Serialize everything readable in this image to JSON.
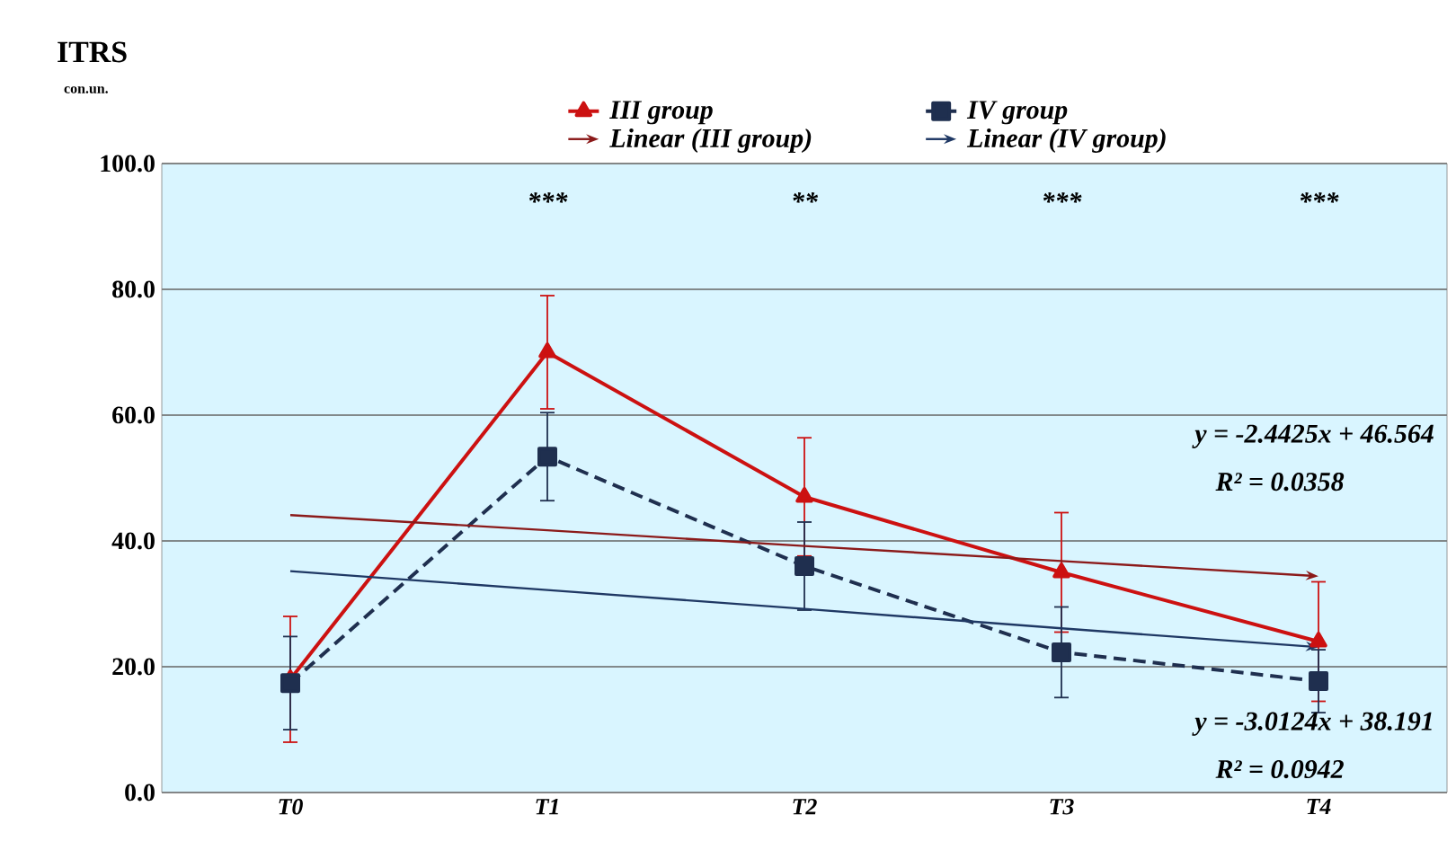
{
  "chart_data": {
    "type": "line",
    "title": "ITRS",
    "subtitle": "con.un.",
    "categories": [
      "T0",
      "T1",
      "T2",
      "T3",
      "T4"
    ],
    "ylim": [
      0,
      100
    ],
    "yticks": [
      {
        "value": 0,
        "label": "0.0"
      },
      {
        "value": 20,
        "label": "20.0"
      },
      {
        "value": 40,
        "label": "40.0"
      },
      {
        "value": 60,
        "label": "60.0"
      },
      {
        "value": 80,
        "label": "80.0"
      },
      {
        "value": 100,
        "label": "100.0"
      }
    ],
    "grid": "y",
    "legend": "top",
    "series": [
      {
        "name": "III group",
        "color": "#cc1111",
        "values": [
          18,
          70,
          47,
          35,
          24
        ],
        "errors": [
          10,
          9,
          9.4,
          9.5,
          9.5
        ],
        "marker": "triangle",
        "line_style": "solid"
      },
      {
        "name": "IV group",
        "color": "#1f2f4f",
        "values": [
          17.4,
          53.4,
          36,
          22.3,
          17.7
        ],
        "errors": [
          7.4,
          7,
          7,
          7.2,
          5
        ],
        "marker": "square",
        "line_style": "dashed"
      },
      {
        "name": "Linear (III group)",
        "color": "#8b1a1a",
        "values": [
          44.1,
          41.7,
          39.2,
          36.8,
          34.4
        ],
        "marker": "none",
        "line_style": "solid"
      },
      {
        "name": "Linear (IV group)",
        "color": "#1f3864",
        "values": [
          35.2,
          32.2,
          29.2,
          26.1,
          23.1
        ],
        "marker": "none",
        "line_style": "solid"
      }
    ],
    "annotations": [
      "***",
      "**",
      "***",
      "***",
      "y = -2.4425x + 46.564",
      "R² = 0.0358",
      "y = -3.0124x + 38.191",
      "R² = 0.0942"
    ]
  }
}
